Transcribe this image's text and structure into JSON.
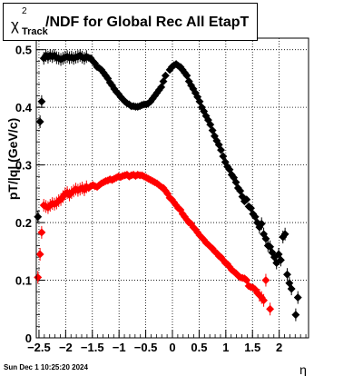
{
  "chart_data": {
    "type": "scatter",
    "title": {
      "chi": "χ",
      "sup": "2",
      "sub": "Track",
      "rest": "/NDF for Global Rec All EtapT"
    },
    "xlabel": "η",
    "ylabel": "pT/|q| (GeV/c)",
    "xlim": [
      -2.55,
      2.55
    ],
    "ylim": [
      0,
      0.52
    ],
    "x_ticks": [
      -2.5,
      -2,
      -1.5,
      -1,
      -0.5,
      0,
      0.5,
      1,
      1.5,
      2
    ],
    "x_tick_labels": [
      "−2.5",
      "−2",
      "−1.5",
      "−1",
      "−0.5",
      "0",
      "0.5",
      "1",
      "1.5",
      "2"
    ],
    "y_ticks": [
      0,
      0.1,
      0.2,
      0.3,
      0.4,
      0.5
    ],
    "y_tick_labels": [
      "0",
      "0.1",
      "0.2",
      "0.3",
      "0.4",
      "0.5"
    ],
    "grid": true,
    "series": [
      {
        "color": "#000000",
        "marker": "diamond",
        "points": [
          [
            -2.52,
            0.21
          ],
          [
            -2.48,
            0.375
          ],
          [
            -2.45,
            0.41
          ],
          [
            -2.41,
            0.485
          ],
          [
            -2.37,
            0.49
          ],
          [
            -2.33,
            0.487
          ],
          [
            -2.29,
            0.49
          ],
          [
            -2.25,
            0.488
          ],
          [
            -2.21,
            0.49
          ],
          [
            -2.17,
            0.486
          ],
          [
            -2.13,
            0.485
          ],
          [
            -2.09,
            0.483
          ],
          [
            -2.05,
            0.485
          ],
          [
            -2.01,
            0.487
          ],
          [
            -1.97,
            0.488
          ],
          [
            -1.93,
            0.486
          ],
          [
            -1.89,
            0.487
          ],
          [
            -1.85,
            0.485
          ],
          [
            -1.81,
            0.487
          ],
          [
            -1.77,
            0.488
          ],
          [
            -1.73,
            0.49
          ],
          [
            -1.69,
            0.487
          ],
          [
            -1.65,
            0.485
          ],
          [
            -1.61,
            0.488
          ],
          [
            -1.57,
            0.486
          ],
          [
            -1.53,
            0.485
          ],
          [
            -1.49,
            0.48
          ],
          [
            -1.45,
            0.476
          ],
          [
            -1.41,
            0.47
          ],
          [
            -1.37,
            0.468
          ],
          [
            -1.33,
            0.465
          ],
          [
            -1.29,
            0.46
          ],
          [
            -1.25,
            0.455
          ],
          [
            -1.21,
            0.45
          ],
          [
            -1.17,
            0.443
          ],
          [
            -1.13,
            0.438
          ],
          [
            -1.09,
            0.432
          ],
          [
            -1.05,
            0.427
          ],
          [
            -1.01,
            0.423
          ],
          [
            -0.97,
            0.418
          ],
          [
            -0.93,
            0.414
          ],
          [
            -0.89,
            0.41
          ],
          [
            -0.85,
            0.407
          ],
          [
            -0.81,
            0.405
          ],
          [
            -0.77,
            0.402
          ],
          [
            -0.73,
            0.402
          ],
          [
            -0.69,
            0.401
          ],
          [
            -0.65,
            0.401
          ],
          [
            -0.61,
            0.402
          ],
          [
            -0.57,
            0.404
          ],
          [
            -0.53,
            0.405
          ],
          [
            -0.49,
            0.405
          ],
          [
            -0.45,
            0.407
          ],
          [
            -0.41,
            0.41
          ],
          [
            -0.37,
            0.415
          ],
          [
            -0.33,
            0.42
          ],
          [
            -0.29,
            0.425
          ],
          [
            -0.25,
            0.43
          ],
          [
            -0.21,
            0.435
          ],
          [
            -0.17,
            0.445
          ],
          [
            -0.13,
            0.455
          ],
          [
            -0.05,
            0.465
          ],
          [
            -0.01,
            0.47
          ],
          [
            0.03,
            0.473
          ],
          [
            0.07,
            0.475
          ],
          [
            0.11,
            0.472
          ],
          [
            0.15,
            0.47
          ],
          [
            0.19,
            0.465
          ],
          [
            0.23,
            0.46
          ],
          [
            0.27,
            0.455
          ],
          [
            0.31,
            0.445
          ],
          [
            0.35,
            0.438
          ],
          [
            0.39,
            0.432
          ],
          [
            0.43,
            0.425
          ],
          [
            0.47,
            0.418
          ],
          [
            0.51,
            0.41
          ],
          [
            0.55,
            0.4
          ],
          [
            0.59,
            0.393
          ],
          [
            0.63,
            0.385
          ],
          [
            0.67,
            0.378
          ],
          [
            0.71,
            0.37
          ],
          [
            0.75,
            0.36
          ],
          [
            0.79,
            0.35
          ],
          [
            0.83,
            0.342
          ],
          [
            0.87,
            0.335
          ],
          [
            0.91,
            0.326
          ],
          [
            0.95,
            0.315
          ],
          [
            0.99,
            0.305
          ],
          [
            1.03,
            0.297
          ],
          [
            1.07,
            0.292
          ],
          [
            1.11,
            0.283
          ],
          [
            1.15,
            0.278
          ],
          [
            1.19,
            0.27
          ],
          [
            1.23,
            0.26
          ],
          [
            1.27,
            0.255
          ],
          [
            1.31,
            0.245
          ],
          [
            1.35,
            0.237
          ],
          [
            1.39,
            0.24
          ],
          [
            1.43,
            0.228
          ],
          [
            1.47,
            0.225
          ],
          [
            1.51,
            0.215
          ],
          [
            1.55,
            0.21
          ],
          [
            1.59,
            0.2
          ],
          [
            1.63,
            0.192
          ],
          [
            1.67,
            0.198
          ],
          [
            1.71,
            0.18
          ],
          [
            1.75,
            0.172
          ],
          [
            1.79,
            0.16
          ],
          [
            1.83,
            0.158
          ],
          [
            1.87,
            0.148
          ],
          [
            1.91,
            0.14
          ],
          [
            1.95,
            0.13
          ],
          [
            1.99,
            0.145
          ],
          [
            2.03,
            0.135
          ],
          [
            2.07,
            0.175
          ],
          [
            2.11,
            0.18
          ],
          [
            2.15,
            0.11
          ],
          [
            2.19,
            0.095
          ],
          [
            2.23,
            0.085
          ],
          [
            2.31,
            0.04
          ],
          [
            2.35,
            0.07
          ]
        ]
      },
      {
        "color": "#ff0000",
        "marker": "diamond",
        "points": [
          [
            -2.52,
            0.105
          ],
          [
            -2.48,
            0.145
          ],
          [
            -2.45,
            0.183
          ],
          [
            -2.41,
            0.23
          ],
          [
            -2.37,
            0.228
          ],
          [
            -2.33,
            0.226
          ],
          [
            -2.29,
            0.23
          ],
          [
            -2.25,
            0.233
          ],
          [
            -2.21,
            0.232
          ],
          [
            -2.17,
            0.234
          ],
          [
            -2.13,
            0.238
          ],
          [
            -2.09,
            0.24
          ],
          [
            -2.05,
            0.245
          ],
          [
            -2.01,
            0.25
          ],
          [
            -1.97,
            0.252
          ],
          [
            -1.93,
            0.248
          ],
          [
            -1.89,
            0.252
          ],
          [
            -1.85,
            0.255
          ],
          [
            -1.81,
            0.258
          ],
          [
            -1.77,
            0.256
          ],
          [
            -1.73,
            0.258
          ],
          [
            -1.69,
            0.26
          ],
          [
            -1.65,
            0.257
          ],
          [
            -1.61,
            0.262
          ],
          [
            -1.57,
            0.26
          ],
          [
            -1.53,
            0.263
          ],
          [
            -1.49,
            0.265
          ],
          [
            -1.45,
            0.263
          ],
          [
            -1.41,
            0.262
          ],
          [
            -1.37,
            0.265
          ],
          [
            -1.33,
            0.268
          ],
          [
            -1.29,
            0.27
          ],
          [
            -1.25,
            0.272
          ],
          [
            -1.21,
            0.273
          ],
          [
            -1.17,
            0.275
          ],
          [
            -1.13,
            0.274
          ],
          [
            -1.09,
            0.276
          ],
          [
            -1.05,
            0.278
          ],
          [
            -1.01,
            0.28
          ],
          [
            -0.97,
            0.279
          ],
          [
            -0.93,
            0.281
          ],
          [
            -0.89,
            0.282
          ],
          [
            -0.85,
            0.283
          ],
          [
            -0.81,
            0.28
          ],
          [
            -0.77,
            0.282
          ],
          [
            -0.73,
            0.283
          ],
          [
            -0.69,
            0.281
          ],
          [
            -0.65,
            0.283
          ],
          [
            -0.61,
            0.282
          ],
          [
            -0.57,
            0.282
          ],
          [
            -0.53,
            0.28
          ],
          [
            -0.49,
            0.278
          ],
          [
            -0.45,
            0.276
          ],
          [
            -0.41,
            0.274
          ],
          [
            -0.37,
            0.272
          ],
          [
            -0.33,
            0.27
          ],
          [
            -0.29,
            0.268
          ],
          [
            -0.25,
            0.265
          ],
          [
            -0.21,
            0.262
          ],
          [
            -0.17,
            0.26
          ],
          [
            -0.13,
            0.255
          ],
          [
            -0.09,
            0.25
          ],
          [
            -0.05,
            0.243
          ],
          [
            -0.01,
            0.24
          ],
          [
            0.03,
            0.235
          ],
          [
            0.07,
            0.23
          ],
          [
            0.11,
            0.225
          ],
          [
            0.15,
            0.222
          ],
          [
            0.19,
            0.215
          ],
          [
            0.23,
            0.21
          ],
          [
            0.27,
            0.205
          ],
          [
            0.31,
            0.2
          ],
          [
            0.35,
            0.198
          ],
          [
            0.39,
            0.192
          ],
          [
            0.43,
            0.188
          ],
          [
            0.47,
            0.183
          ],
          [
            0.51,
            0.178
          ],
          [
            0.55,
            0.174
          ],
          [
            0.59,
            0.17
          ],
          [
            0.63,
            0.165
          ],
          [
            0.67,
            0.162
          ],
          [
            0.71,
            0.158
          ],
          [
            0.75,
            0.155
          ],
          [
            0.79,
            0.15
          ],
          [
            0.83,
            0.147
          ],
          [
            0.87,
            0.142
          ],
          [
            0.91,
            0.14
          ],
          [
            0.95,
            0.135
          ],
          [
            0.99,
            0.13
          ],
          [
            1.03,
            0.128
          ],
          [
            1.07,
            0.123
          ],
          [
            1.11,
            0.118
          ],
          [
            1.15,
            0.115
          ],
          [
            1.19,
            0.112
          ],
          [
            1.23,
            0.108
          ],
          [
            1.27,
            0.105
          ],
          [
            1.31,
            0.104
          ],
          [
            1.35,
            0.103
          ],
          [
            1.39,
            0.1
          ],
          [
            1.43,
            0.09
          ],
          [
            1.47,
            0.088
          ],
          [
            1.51,
            0.087
          ],
          [
            1.55,
            0.084
          ],
          [
            1.59,
            0.078
          ],
          [
            1.63,
            0.074
          ],
          [
            1.67,
            0.07
          ],
          [
            1.71,
            0.065
          ],
          [
            1.75,
            0.1
          ],
          [
            1.83,
            0.05
          ]
        ]
      }
    ],
    "footer": "Sun Dec  1 10:25:20 2024"
  }
}
